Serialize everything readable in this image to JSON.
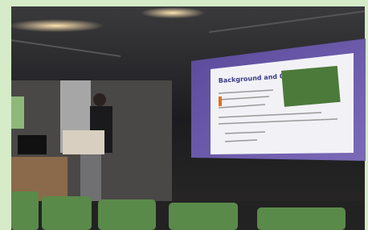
{
  "slide": {
    "title": "Background and Objective"
  }
}
